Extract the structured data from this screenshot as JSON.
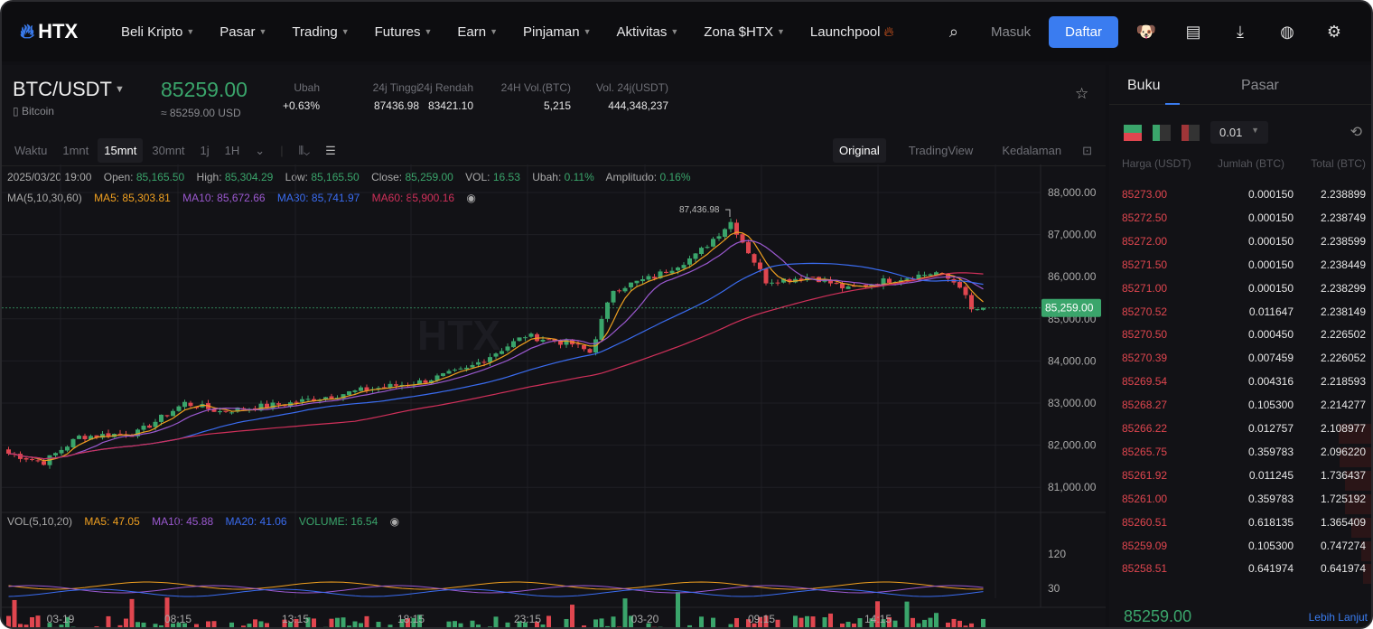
{
  "nav": {
    "logo": "HTX",
    "items": [
      "Beli Kripto",
      "Pasar",
      "Trading",
      "Futures",
      "Earn",
      "Pinjaman",
      "Aktivitas",
      "Zona $HTX",
      "Launchpool"
    ],
    "login": "Masuk",
    "signup": "Daftar"
  },
  "ticker": {
    "pair": "BTC/USDT",
    "name": "Bitcoin",
    "price": "85259.00",
    "price_usd": "≈ 85259.00 USD",
    "stats": [
      {
        "label": "Ubah",
        "value": "+0.63%"
      },
      {
        "label": "24j Tinggi",
        "value": "87436.98"
      },
      {
        "label": "24j Rendah",
        "value": "83421.10"
      },
      {
        "label": "24H Vol.(BTC)",
        "value": "5,215"
      },
      {
        "label": "Vol. 24j(USDT)",
        "value": "444,348,237"
      }
    ]
  },
  "toolbar": {
    "intervals": [
      "Waktu",
      "1mnt",
      "15mnt",
      "30mnt",
      "1j",
      "1H"
    ],
    "active": "15mnt",
    "views": [
      "Original",
      "TradingView",
      "Kedalaman"
    ]
  },
  "ohlc": {
    "date": "2025/03/20 19:00",
    "open_l": "Open:",
    "open": "85,165.50",
    "high_l": "High:",
    "high": "85,304.29",
    "low_l": "Low:",
    "low": "85,165.50",
    "close_l": "Close:",
    "close": "85,259.00",
    "vol_l": "VOL:",
    "vol": "16.53",
    "chg_l": "Ubah:",
    "chg": "0.11%",
    "amp_l": "Amplitudo:",
    "amp": "0.16%"
  },
  "ma": {
    "label": "MA(5,10,30,60)",
    "ma5": "MA5: 85,303.81",
    "ma10": "MA10: 85,672.66",
    "ma30": "MA30: 85,741.97",
    "ma60": "MA60: 85,900.16"
  },
  "vol": {
    "label": "VOL(5,10,20)",
    "ma5": "MA5: 47.05",
    "ma10": "MA10: 45.88",
    "ma20": "MA20: 41.06",
    "volume": "VOLUME: 16.54",
    "ticks": [
      "120",
      "30"
    ]
  },
  "colors": {
    "up": "#3aa56b",
    "down": "#e0464f",
    "ma5": "#f0a020",
    "ma10": "#9b59d0",
    "ma30": "#3a6cf0",
    "ma60": "#d0305a",
    "accent": "#3a7cf0"
  },
  "chart": {
    "price_ticks": [
      "88,000.00",
      "87,000.00",
      "86,000.00",
      "85,000.00",
      "84,000.00",
      "83,000.00",
      "82,000.00",
      "81,000.00"
    ],
    "current_label": "85,259.00",
    "high_marker": "87,436.98",
    "time_ticks": [
      "03-19",
      "08:15",
      "13:15",
      "18:15",
      "23:15",
      "03-20",
      "09:15",
      "14:15"
    ],
    "price_path": [
      [
        0,
        81800
      ],
      [
        6,
        81600
      ],
      [
        12,
        82200
      ],
      [
        22,
        82300
      ],
      [
        30,
        83000
      ],
      [
        36,
        82800
      ],
      [
        48,
        83000
      ],
      [
        60,
        83300
      ],
      [
        70,
        83500
      ],
      [
        78,
        83800
      ],
      [
        88,
        84600
      ],
      [
        96,
        84400
      ],
      [
        99,
        84200
      ],
      [
        103,
        85700
      ],
      [
        110,
        86000
      ],
      [
        117,
        86500
      ],
      [
        123,
        87300
      ],
      [
        126,
        86600
      ],
      [
        129,
        85900
      ],
      [
        137,
        86000
      ],
      [
        143,
        85700
      ],
      [
        149,
        85900
      ],
      [
        158,
        86100
      ],
      [
        162,
        85800
      ],
      [
        164,
        85200
      ],
      [
        166,
        85259
      ]
    ]
  },
  "orderbook": {
    "tabs": [
      "Buku",
      "Pasar"
    ],
    "precision": "0.01",
    "headers": [
      "Harga (USDT)",
      "Jumlah (BTC)",
      "Total (BTC)"
    ],
    "asks": [
      [
        "85273.00",
        "0.000150",
        "2.238899"
      ],
      [
        "85272.50",
        "0.000150",
        "2.238749"
      ],
      [
        "85272.00",
        "0.000150",
        "2.238599"
      ],
      [
        "85271.50",
        "0.000150",
        "2.238449"
      ],
      [
        "85271.00",
        "0.000150",
        "2.238299"
      ],
      [
        "85270.52",
        "0.011647",
        "2.238149"
      ],
      [
        "85270.50",
        "0.000450",
        "2.226502"
      ],
      [
        "85270.39",
        "0.007459",
        "2.226052"
      ],
      [
        "85269.54",
        "0.004316",
        "2.218593"
      ],
      [
        "85268.27",
        "0.105300",
        "2.214277"
      ],
      [
        "85266.22",
        "0.012757",
        "2.108977"
      ],
      [
        "85265.75",
        "0.359783",
        "2.096220"
      ],
      [
        "85261.92",
        "0.011245",
        "1.736437"
      ],
      [
        "85261.00",
        "0.359783",
        "1.725192"
      ],
      [
        "85260.51",
        "0.618135",
        "1.365409"
      ],
      [
        "85259.09",
        "0.105300",
        "0.747274"
      ],
      [
        "85258.51",
        "0.641974",
        "0.641974"
      ]
    ],
    "last_price": "85259.00",
    "more": "Lebih Lanjut"
  }
}
